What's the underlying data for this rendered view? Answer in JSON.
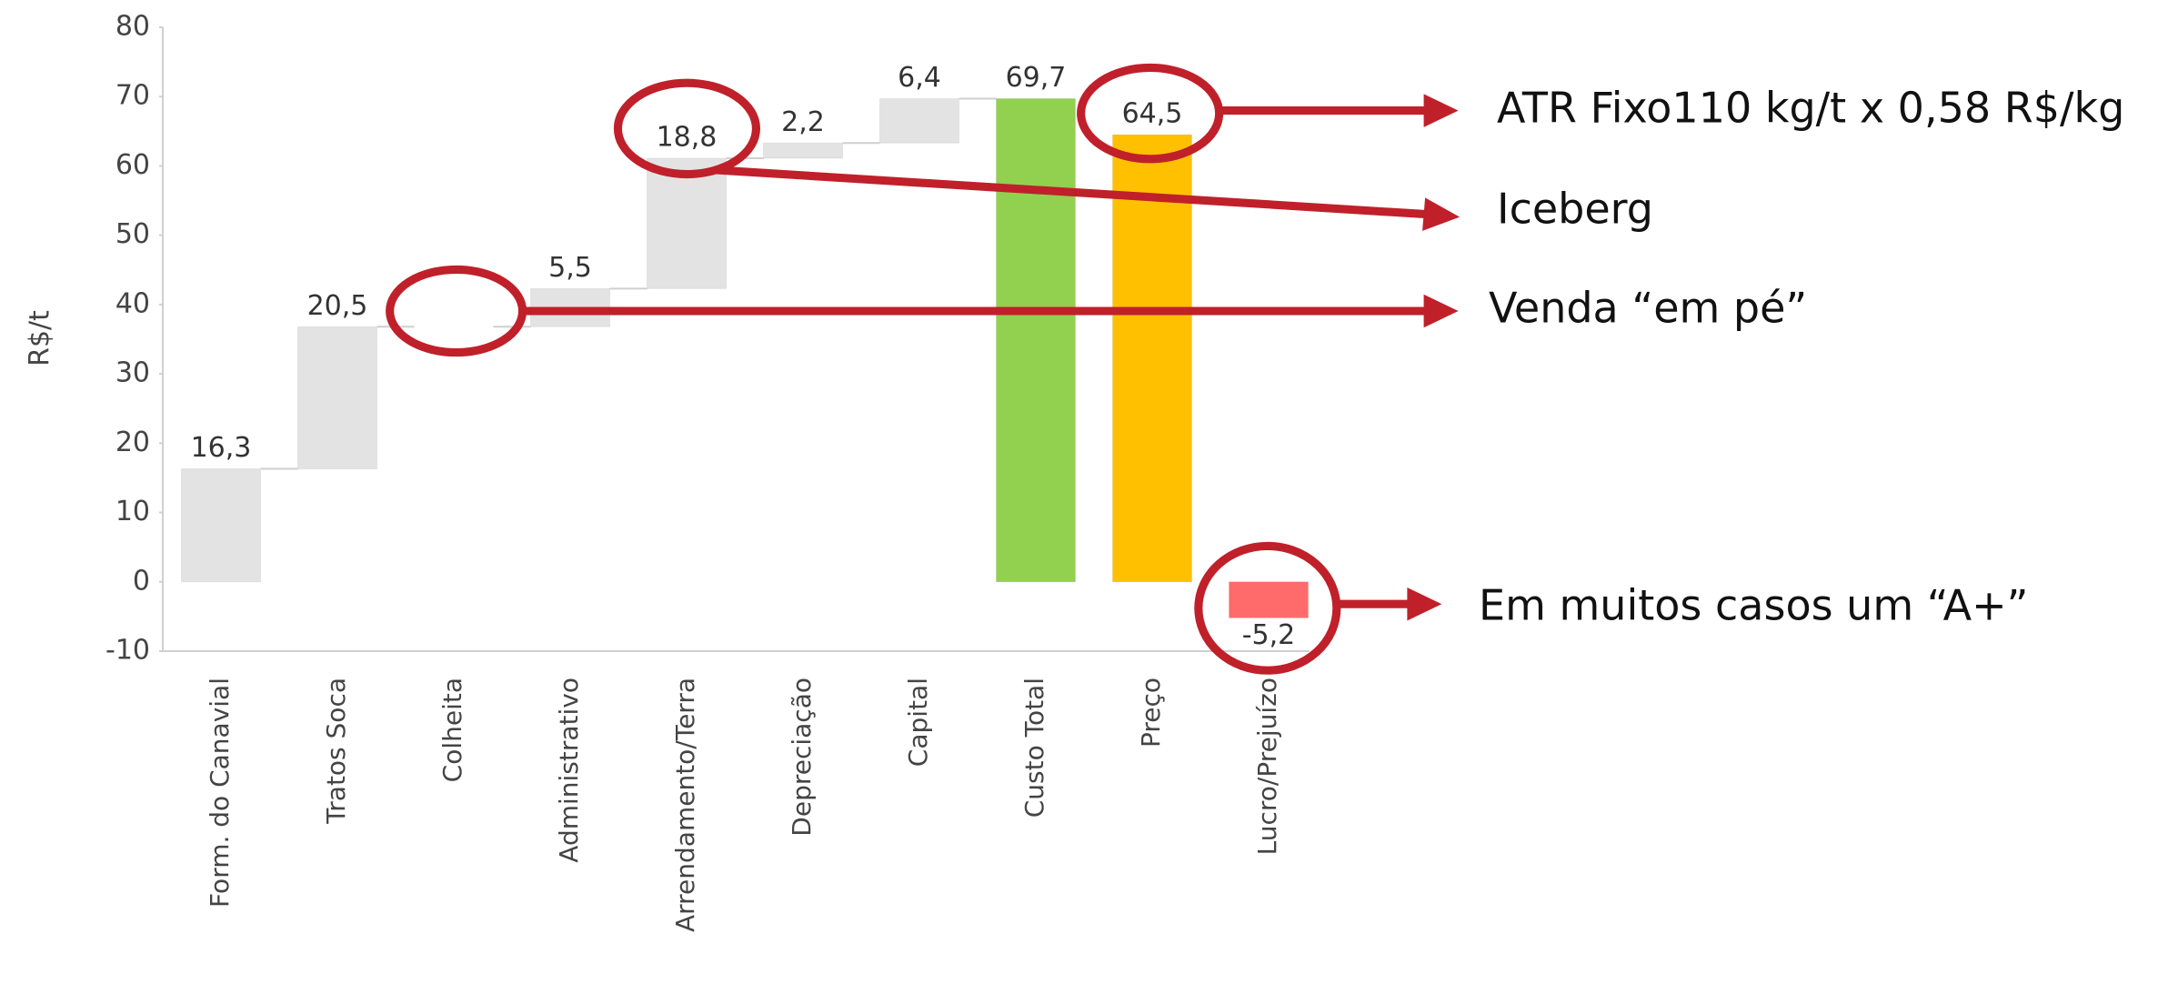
{
  "chart_data": {
    "type": "waterfall",
    "y_label": "R$/t",
    "categories": [
      "Form. do Canavial",
      "Tratos Soca",
      "Colheita",
      "Administrativo",
      "Arrendamento/Terra",
      "Depreciação",
      "Capital",
      "Custo Total",
      "Preço",
      "Lucro/Prejuízo"
    ],
    "values": [
      16.3,
      20.5,
      0,
      5.5,
      18.8,
      2.2,
      6.4,
      69.7,
      64.5,
      -5.2
    ],
    "value_labels": [
      "16,3",
      "20,5",
      null,
      "5,5",
      "18,8",
      "2,2",
      "6,4",
      "69,7",
      "64,5",
      "-5,2"
    ],
    "measures": [
      "relative",
      "relative",
      "relative",
      "relative",
      "relative",
      "relative",
      "relative",
      "total",
      "total",
      "total"
    ],
    "colors": [
      "#e3e3e3",
      "#e3e3e3",
      "#e3e3e3",
      "#e3e3e3",
      "#e3e3e3",
      "#e3e3e3",
      "#e3e3e3",
      "#92d050",
      "#ffc000",
      "#ff6b6b"
    ],
    "ylim": [
      -10,
      80
    ],
    "yticks": [
      -10,
      0,
      10,
      20,
      30,
      40,
      50,
      60,
      70,
      80
    ],
    "annotations": [
      "ATR Fixo110 kg/t x 0,58 R$/kg",
      "Iceberg",
      "Venda “em pé”",
      "Em muitos casos um “A+”"
    ]
  }
}
